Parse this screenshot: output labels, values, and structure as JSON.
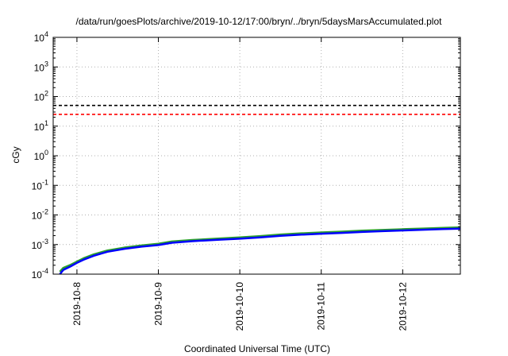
{
  "chart_data": {
    "type": "line",
    "title": "/data/run/goesPlots/archive/2019-10-12/17:00/bryn/../bryn/5daysMarsAccumulated.plot",
    "xlabel": "Coordinated Universal Time (UTC)",
    "ylabel": "cGy",
    "yscale": "log",
    "ylim": [
      0.0001,
      10000
    ],
    "xlim": [
      "2019-10-07T17:00",
      "2019-10-12T17:00"
    ],
    "grid": true,
    "x_ticks": [
      {
        "value": "2019-10-08T00:00",
        "label": "2019-10-8"
      },
      {
        "value": "2019-10-09T00:00",
        "label": "2019-10-9"
      },
      {
        "value": "2019-10-10T00:00",
        "label": "2019-10-10"
      },
      {
        "value": "2019-10-11T00:00",
        "label": "2019-10-11"
      },
      {
        "value": "2019-10-12T00:00",
        "label": "2019-10-12"
      }
    ],
    "y_ticks": [
      {
        "value": 0.0001,
        "base": "10",
        "exp": "-4"
      },
      {
        "value": 0.001,
        "base": "10",
        "exp": "-3"
      },
      {
        "value": 0.01,
        "base": "10",
        "exp": "-2"
      },
      {
        "value": 0.1,
        "base": "10",
        "exp": "-1"
      },
      {
        "value": 1,
        "base": "10",
        "exp": "0"
      },
      {
        "value": 10,
        "base": "10",
        "exp": "1"
      },
      {
        "value": 100,
        "base": "10",
        "exp": "2"
      },
      {
        "value": 1000,
        "base": "10",
        "exp": "3"
      },
      {
        "value": 10000,
        "base": "10",
        "exp": "4"
      }
    ],
    "reference_lines": [
      {
        "y": 50,
        "color": "#000000",
        "style": "dashed"
      },
      {
        "y": 25,
        "color": "#ff0000",
        "style": "dashed"
      }
    ],
    "series": [
      {
        "color": "#2ca02c",
        "points": [
          [
            "2019-10-07T19:00",
            0.00012
          ],
          [
            "2019-10-07T20:00",
            0.00016
          ],
          [
            "2019-10-07T22:00",
            0.0002
          ],
          [
            "2019-10-08T00:00",
            0.00026
          ],
          [
            "2019-10-08T02:00",
            0.00034
          ],
          [
            "2019-10-08T05:00",
            0.00046
          ],
          [
            "2019-10-08T09:00",
            0.00062
          ],
          [
            "2019-10-08T14:00",
            0.00078
          ],
          [
            "2019-10-08T19:00",
            0.00092
          ],
          [
            "2019-10-09T00:00",
            0.00105
          ],
          [
            "2019-10-09T04:00",
            0.00125
          ],
          [
            "2019-10-09T10:00",
            0.0014
          ],
          [
            "2019-10-09T18:00",
            0.00158
          ],
          [
            "2019-10-10T00:00",
            0.00172
          ],
          [
            "2019-10-10T06:00",
            0.0019
          ],
          [
            "2019-10-10T12:00",
            0.00215
          ],
          [
            "2019-10-10T18:00",
            0.00235
          ],
          [
            "2019-10-11T00:00",
            0.00252
          ],
          [
            "2019-10-11T06:00",
            0.0027
          ],
          [
            "2019-10-11T12:00",
            0.0029
          ],
          [
            "2019-10-11T18:00",
            0.00308
          ],
          [
            "2019-10-12T00:00",
            0.00325
          ],
          [
            "2019-10-12T06:00",
            0.00342
          ],
          [
            "2019-10-12T12:00",
            0.0036
          ],
          [
            "2019-10-12T17:00",
            0.00375
          ]
        ]
      },
      {
        "color": "#0000ff",
        "points": [
          [
            "2019-10-07T19:00",
            0.0001
          ],
          [
            "2019-10-07T20:00",
            0.00014
          ],
          [
            "2019-10-07T22:00",
            0.00018
          ],
          [
            "2019-10-08T00:00",
            0.00024
          ],
          [
            "2019-10-08T02:00",
            0.00031
          ],
          [
            "2019-10-08T05:00",
            0.00042
          ],
          [
            "2019-10-08T09:00",
            0.00057
          ],
          [
            "2019-10-08T14:00",
            0.00072
          ],
          [
            "2019-10-08T19:00",
            0.00085
          ],
          [
            "2019-10-09T00:00",
            0.00096
          ],
          [
            "2019-10-09T04:00",
            0.00115
          ],
          [
            "2019-10-09T10:00",
            0.0013
          ],
          [
            "2019-10-09T18:00",
            0.00146
          ],
          [
            "2019-10-10T00:00",
            0.00158
          ],
          [
            "2019-10-10T06:00",
            0.00175
          ],
          [
            "2019-10-10T12:00",
            0.00198
          ],
          [
            "2019-10-10T18:00",
            0.00216
          ],
          [
            "2019-10-11T00:00",
            0.00232
          ],
          [
            "2019-10-11T06:00",
            0.00248
          ],
          [
            "2019-10-11T12:00",
            0.00266
          ],
          [
            "2019-10-11T18:00",
            0.00283
          ],
          [
            "2019-10-12T00:00",
            0.003
          ],
          [
            "2019-10-12T06:00",
            0.00316
          ],
          [
            "2019-10-12T12:00",
            0.00332
          ],
          [
            "2019-10-12T17:00",
            0.00345
          ]
        ]
      }
    ]
  }
}
